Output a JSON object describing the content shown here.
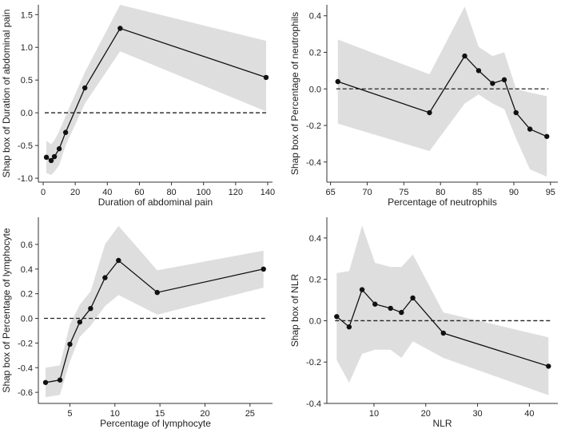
{
  "chart_data": [
    {
      "type": "line",
      "xlabel": "Duration of abdominal pain",
      "ylabel": "Shap box of Duration of abdominal pain",
      "xlim": [
        -3,
        143
      ],
      "ylim": [
        -1.06,
        1.65
      ],
      "xticks": [
        0,
        20,
        40,
        60,
        80,
        100,
        120,
        140
      ],
      "yticks": [
        -1.0,
        -0.5,
        0.0,
        0.5,
        1.0,
        1.5
      ],
      "tick_decimals": 1,
      "reference_line": 0,
      "x": [
        2,
        5,
        7,
        10,
        14,
        26,
        48,
        139
      ],
      "y": [
        -0.68,
        -0.73,
        -0.67,
        -0.55,
        -0.3,
        0.38,
        1.29,
        0.54
      ],
      "lower": [
        -0.92,
        -0.95,
        -0.9,
        -0.8,
        -0.5,
        0.14,
        0.94,
        0.02
      ],
      "upper": [
        -0.43,
        -0.48,
        -0.42,
        -0.28,
        -0.05,
        0.62,
        1.65,
        1.1
      ]
    },
    {
      "type": "line",
      "xlabel": "Percentage of neutrophils",
      "ylabel": "Shap box of Percentage of neutrophils",
      "xlim": [
        64.5,
        96
      ],
      "ylim": [
        -0.51,
        0.46
      ],
      "xticks": [
        65,
        70,
        75,
        80,
        85,
        90,
        95
      ],
      "yticks": [
        -0.4,
        -0.2,
        0.0,
        0.2,
        0.4
      ],
      "tick_decimals": 1,
      "reference_line": 0,
      "x": [
        66,
        78.5,
        83.3,
        85.2,
        87.1,
        88.7,
        90.3,
        92.2,
        94.5
      ],
      "y": [
        0.04,
        -0.13,
        0.18,
        0.1,
        0.03,
        0.05,
        -0.13,
        -0.22,
        -0.26
      ],
      "lower": [
        -0.19,
        -0.34,
        -0.08,
        -0.03,
        -0.08,
        -0.11,
        -0.27,
        -0.44,
        -0.48
      ],
      "upper": [
        0.27,
        0.08,
        0.45,
        0.23,
        0.18,
        0.2,
        0.0,
        -0.02,
        -0.04
      ]
    },
    {
      "type": "line",
      "xlabel": "Percentage of lymphocyte",
      "ylabel": "Shap box of Percentage of lymphocyte",
      "xlim": [
        1.5,
        27.5
      ],
      "ylim": [
        -0.69,
        0.82
      ],
      "xticks": [
        5,
        10,
        15,
        20,
        25
      ],
      "yticks": [
        -0.6,
        -0.4,
        -0.2,
        0.0,
        0.2,
        0.4,
        0.6
      ],
      "tick_decimals": 1,
      "reference_line": 0,
      "x": [
        2.3,
        3.9,
        5.0,
        6.1,
        7.3,
        8.9,
        10.4,
        14.7,
        26.5
      ],
      "y": [
        -0.52,
        -0.5,
        -0.21,
        -0.03,
        0.08,
        0.33,
        0.47,
        0.21,
        0.4
      ],
      "lower": [
        -0.64,
        -0.62,
        -0.35,
        -0.15,
        -0.06,
        0.1,
        0.19,
        0.03,
        0.25
      ],
      "upper": [
        -0.4,
        -0.38,
        -0.05,
        0.11,
        0.22,
        0.6,
        0.75,
        0.39,
        0.55
      ]
    },
    {
      "type": "line",
      "xlabel": "NLR",
      "ylabel": "Shap box of NLR",
      "xlim": [
        0.9,
        45.5
      ],
      "ylim": [
        -0.4,
        0.5
      ],
      "xticks": [
        10,
        20,
        30,
        40
      ],
      "yticks": [
        -0.4,
        -0.2,
        0.0,
        0.2,
        0.4
      ],
      "tick_decimals": 1,
      "reference_line": 0,
      "x": [
        2.8,
        5.2,
        7.7,
        10.2,
        13.2,
        15.3,
        17.5,
        23.4,
        43.7
      ],
      "y": [
        0.02,
        -0.03,
        0.15,
        0.08,
        0.06,
        0.04,
        0.11,
        -0.06,
        -0.22
      ],
      "lower": [
        -0.19,
        -0.3,
        -0.16,
        -0.14,
        -0.14,
        -0.18,
        -0.1,
        -0.18,
        -0.36
      ],
      "upper": [
        0.23,
        0.24,
        0.46,
        0.28,
        0.26,
        0.26,
        0.32,
        0.04,
        -0.08
      ]
    }
  ]
}
